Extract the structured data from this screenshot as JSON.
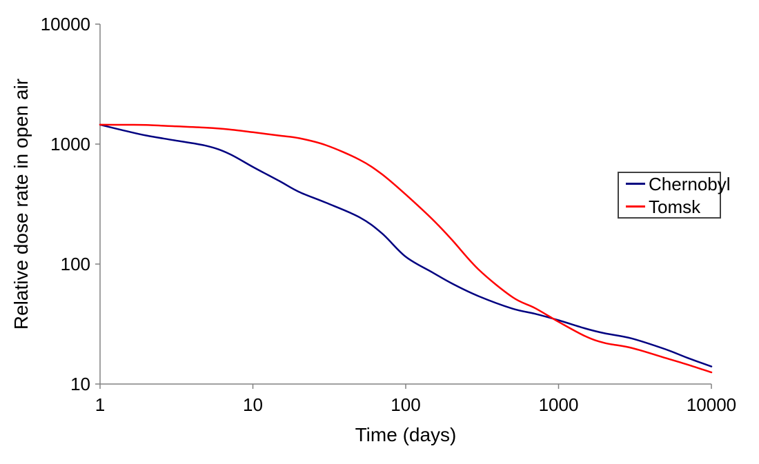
{
  "chart_data": {
    "type": "line",
    "title": "",
    "xlabel": "Time (days)",
    "ylabel": "Relative dose rate in open air",
    "x_scale": "log",
    "y_scale": "log",
    "xlim": [
      1,
      10000
    ],
    "ylim": [
      10,
      10000
    ],
    "grid": false,
    "legend_position": "right",
    "x_ticks": [
      1,
      10,
      100,
      1000,
      10000
    ],
    "x_tick_labels": [
      "1",
      "10",
      "100",
      "1000",
      "10000"
    ],
    "y_ticks": [
      10,
      100,
      1000,
      10000
    ],
    "y_tick_labels": [
      "10",
      "100",
      "1000",
      "10000"
    ],
    "x": [
      1,
      1.5,
      2,
      3,
      5,
      7,
      10,
      15,
      20,
      30,
      50,
      70,
      100,
      150,
      200,
      300,
      500,
      700,
      1000,
      1500,
      2000,
      3000,
      5000,
      7000,
      10000
    ],
    "series": [
      {
        "name": "Chernobyl",
        "color": "#000080",
        "values": [
          1450,
          1280,
          1180,
          1080,
          965,
          830,
          645,
          490,
          400,
          325,
          245,
          180,
          115,
          85,
          69,
          54,
          42.5,
          38.5,
          34,
          29,
          26.5,
          24,
          19.5,
          16.5,
          14
        ]
      },
      {
        "name": "Tomsk",
        "color": "#FF0000",
        "values": [
          1450,
          1448,
          1443,
          1410,
          1370,
          1325,
          1255,
          1175,
          1120,
          980,
          740,
          560,
          380,
          235,
          160,
          90,
          53,
          43,
          33,
          25,
          22,
          20,
          16.5,
          14.5,
          12.5
        ]
      }
    ],
    "annotations": {
      "curves_cross_at": {
        "t_days": 900,
        "value": 34
      }
    }
  },
  "colors": {
    "axis": "#808080",
    "text": "#000000",
    "background": "#FFFFFF",
    "legend_border": "#404040"
  }
}
